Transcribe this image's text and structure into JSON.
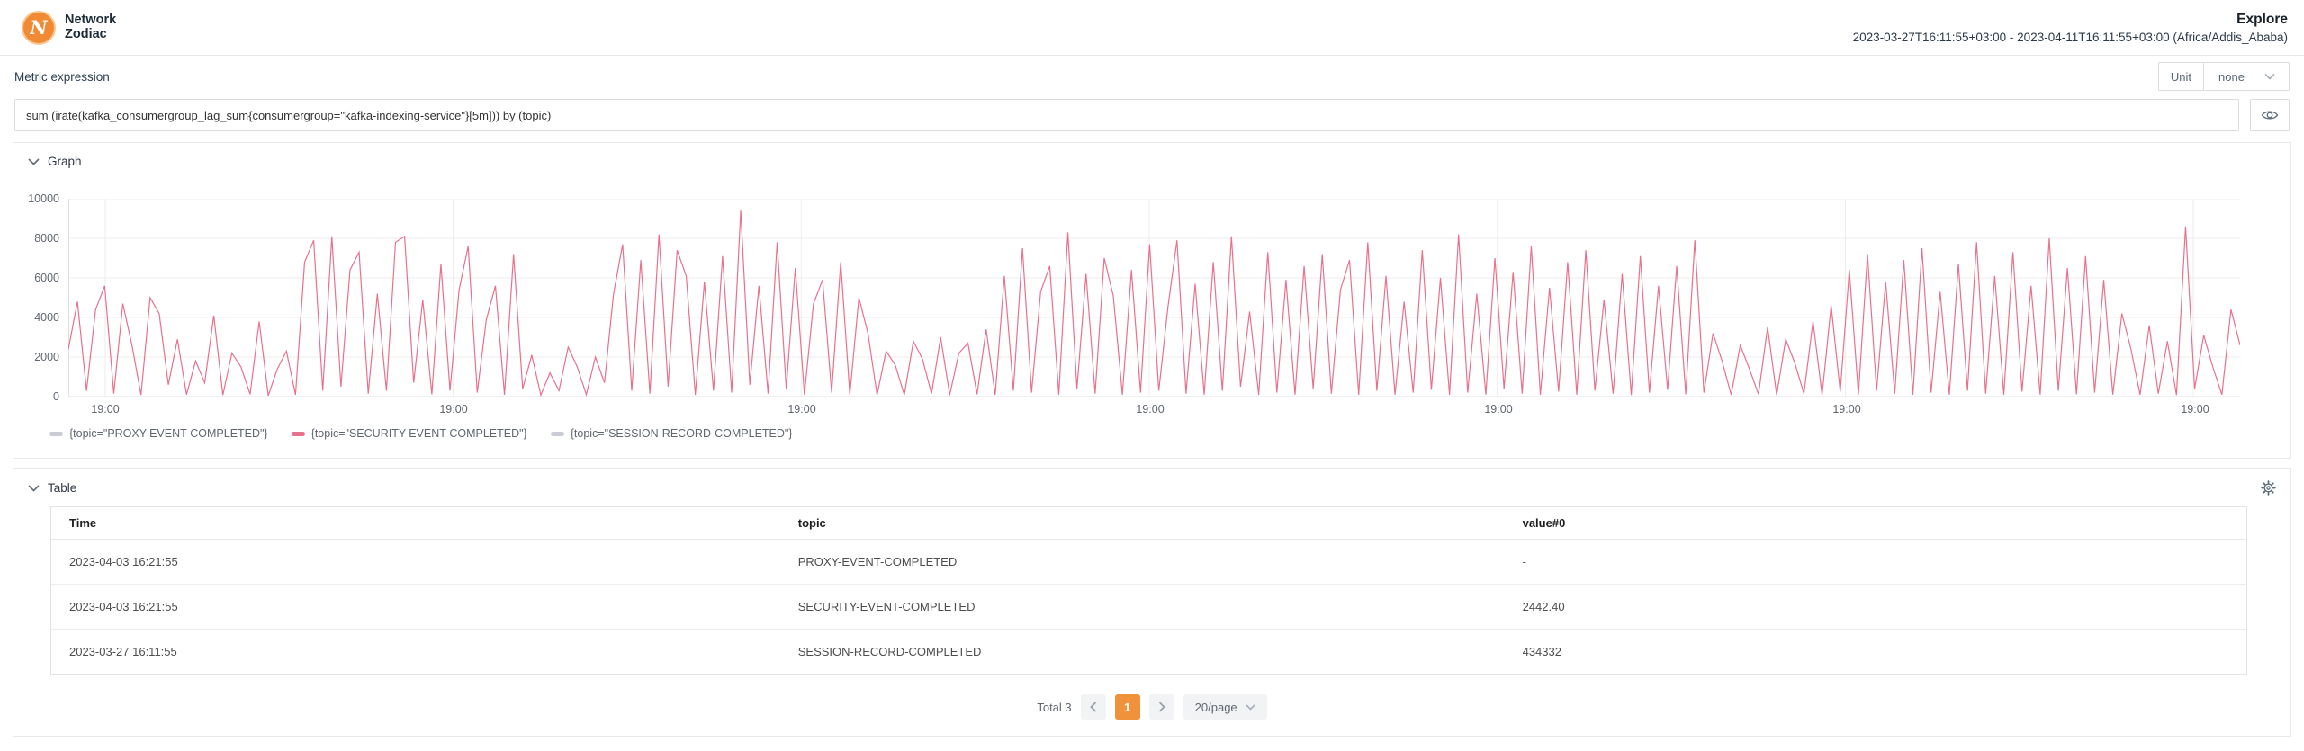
{
  "header": {
    "logo_letter": "N",
    "brand_line1": "Network",
    "brand_line2": "Zodiac",
    "title": "Explore",
    "time_range": "2023-03-27T16:11:55+03:00 - 2023-04-11T16:11:55+03:00 (Africa/Addis_Ababa)"
  },
  "toolbar": {
    "metric_label": "Metric expression",
    "unit_label": "Unit",
    "unit_value": "none"
  },
  "expression": {
    "value": "sum (irate(kafka_consumergroup_lag_sum{consumergroup=\"kafka-indexing-service\"}[5m])) by (topic)"
  },
  "graph_section": {
    "title": "Graph"
  },
  "table_section": {
    "title": "Table",
    "columns": [
      "Time",
      "topic",
      "value#0"
    ],
    "rows": [
      [
        "2023-04-03 16:21:55",
        "PROXY-EVENT-COMPLETED",
        "-"
      ],
      [
        "2023-04-03 16:21:55",
        "SECURITY-EVENT-COMPLETED",
        "2442.40"
      ],
      [
        "2023-03-27 16:11:55",
        "SESSION-RECORD-COMPLETED",
        "434332"
      ]
    ]
  },
  "pagination": {
    "total_label": "Total 3",
    "current_page": "1",
    "page_size": "20/page"
  },
  "colors": {
    "accent_orange": "#f0913c",
    "line_pink": "#e8718d",
    "inactive_gray": "#c9ccd4",
    "grid": "#ececec",
    "axis": "#e0e0e0"
  },
  "chart_data": {
    "type": "line",
    "title": "",
    "xlabel": "",
    "ylabel": "",
    "ylim": [
      0,
      10000
    ],
    "y_ticks": [
      0,
      2000,
      4000,
      6000,
      8000,
      10000
    ],
    "x_ticks": [
      "19:00",
      "19:00",
      "19:00",
      "19:00",
      "19:00",
      "19:00",
      "19:00"
    ],
    "grid": true,
    "legend_position": "bottom-left",
    "series": [
      {
        "name": "{topic=\"PROXY-EVENT-COMPLETED\"}",
        "color": "#c9ccd4",
        "active": false,
        "values": []
      },
      {
        "name": "{topic=\"SECURITY-EVENT-COMPLETED\"}",
        "color": "#e8718d",
        "active": true,
        "values": [
          2400,
          4800,
          300,
          4400,
          5600,
          150,
          4700,
          2600,
          80,
          5000,
          4200,
          600,
          2900,
          100,
          1800,
          700,
          4100,
          80,
          2200,
          1500,
          120,
          3800,
          50,
          1400,
          2300,
          90,
          6800,
          7900,
          300,
          8100,
          500,
          6400,
          7300,
          150,
          5200,
          300,
          7800,
          8100,
          700,
          4900,
          120,
          6700,
          300,
          5400,
          7600,
          200,
          3900,
          5600,
          90,
          7200,
          400,
          2100,
          80,
          1200,
          300,
          2500,
          1500,
          100,
          2000,
          700,
          5200,
          7700,
          300,
          6900,
          150,
          8200,
          500,
          7400,
          6100,
          90,
          5800,
          300,
          7100,
          200,
          9400,
          600,
          5600,
          150,
          7800,
          400,
          6500,
          100,
          4700,
          5900,
          200,
          6800,
          100,
          5000,
          3200,
          80,
          2300,
          1600,
          90,
          2800,
          1900,
          150,
          3000,
          80,
          2200,
          2700,
          120,
          3400,
          90,
          6100,
          300,
          7500,
          200,
          5300,
          6600,
          100,
          8300,
          400,
          6200,
          150,
          7000,
          5100,
          90,
          6400,
          200,
          7700,
          300,
          4500,
          7900,
          150,
          5700,
          100,
          6800,
          300,
          8100,
          500,
          4300,
          90,
          7300,
          200,
          5900,
          100,
          6600,
          400,
          7200,
          150,
          5400,
          6900,
          90,
          7800,
          300,
          6100,
          100,
          4800,
          200,
          7400,
          350,
          6000,
          90,
          8200,
          200,
          5200,
          100,
          7000,
          400,
          6300,
          150,
          7600,
          90,
          5500,
          250,
          6800,
          100,
          7400,
          300,
          4900,
          150,
          6200,
          80,
          7100,
          200,
          5600,
          350,
          6600,
          120,
          7900,
          200,
          3200,
          1800,
          90,
          2600,
          1400,
          120,
          3500,
          80,
          2900,
          1700,
          150,
          3800,
          90,
          4600,
          250,
          6400,
          100,
          7200,
          300,
          5800,
          150,
          6900,
          90,
          7500,
          200,
          5300,
          100,
          6700,
          300,
          7800,
          150,
          6100,
          90,
          7300,
          250,
          5600,
          100,
          8000,
          300,
          6500,
          120,
          7100,
          200,
          5900,
          100,
          4200,
          2400,
          90,
          3600,
          150,
          2800,
          80,
          8600,
          400,
          3100,
          1500,
          100,
          4400,
          2600
        ]
      },
      {
        "name": "{topic=\"SESSION-RECORD-COMPLETED\"}",
        "color": "#c9ccd4",
        "active": false,
        "values": []
      }
    ]
  }
}
